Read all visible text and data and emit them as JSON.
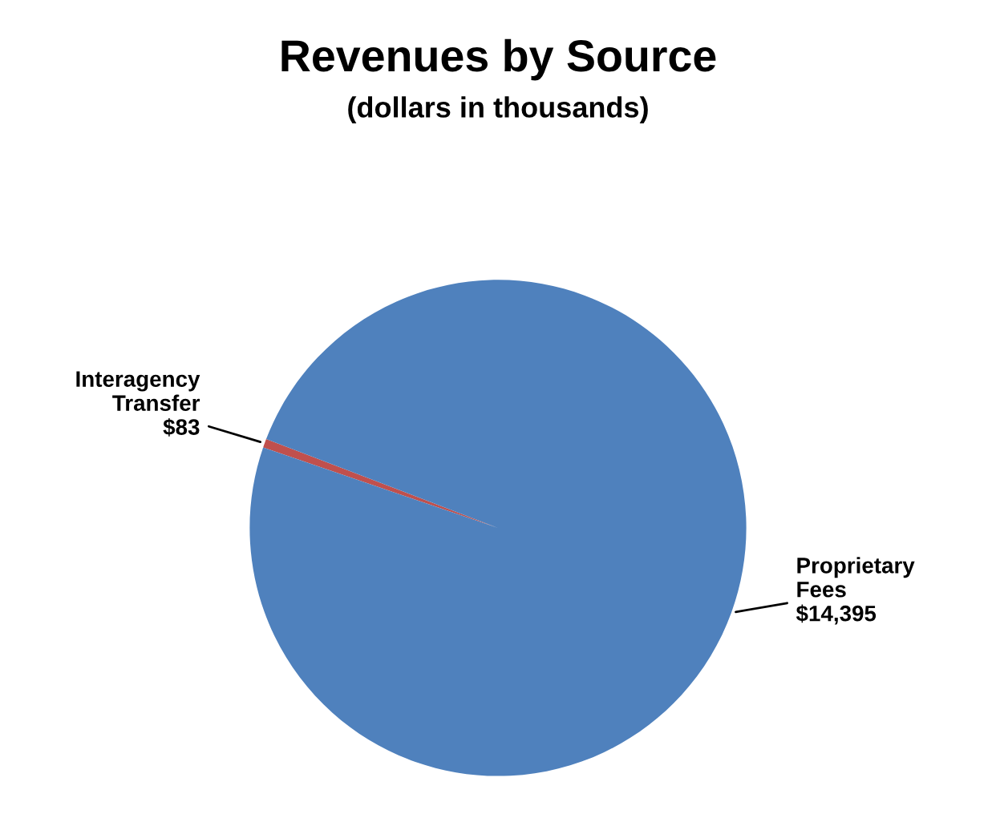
{
  "chart_data": {
    "type": "pie",
    "title": "Revenues by Source",
    "subtitle": "(dollars in thousands)",
    "categories": [
      "Interagency Transfer",
      "Proprietary Fees"
    ],
    "values": [
      83,
      14395
    ],
    "value_labels": [
      "$83",
      "$14,395"
    ],
    "colors": [
      "#c0504d",
      "#4f81bd"
    ],
    "legend": false
  }
}
